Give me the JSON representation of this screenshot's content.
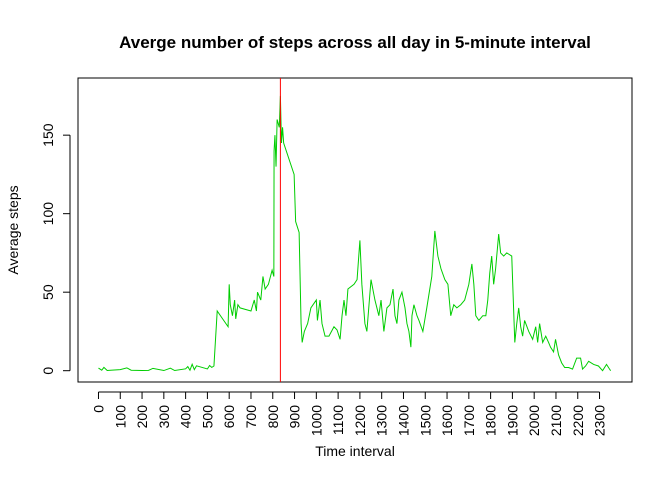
{
  "chart_data": {
    "type": "line",
    "title": "Averge number of steps across all day in 5-minute interval",
    "xlabel": "Time interval",
    "ylabel": "Average steps",
    "x": [
      0,
      15,
      25,
      40,
      55,
      100,
      130,
      150,
      200,
      230,
      250,
      300,
      330,
      350,
      400,
      410,
      420,
      430,
      440,
      450,
      500,
      505,
      510,
      520,
      530,
      545,
      560,
      595,
      600,
      605,
      615,
      625,
      630,
      640,
      650,
      700,
      715,
      725,
      730,
      745,
      755,
      765,
      780,
      797,
      805,
      806,
      810,
      815,
      820,
      830,
      835,
      840,
      845,
      850,
      898,
      905,
      921,
      930,
      935,
      945,
      960,
      975,
      1000,
      1005,
      1017,
      1026,
      1040,
      1058,
      1081,
      1095,
      1109,
      1118,
      1127,
      1136,
      1145,
      1173,
      1187,
      1200,
      1209,
      1223,
      1232,
      1251,
      1269,
      1287,
      1297,
      1310,
      1324,
      1338,
      1352,
      1361,
      1370,
      1379,
      1393,
      1407,
      1416,
      1425,
      1434,
      1439,
      1448,
      1462,
      1471,
      1489,
      1507,
      1530,
      1544,
      1558,
      1572,
      1590,
      1604,
      1617,
      1631,
      1645,
      1663,
      1681,
      1700,
      1714,
      1723,
      1732,
      1746,
      1764,
      1778,
      1787,
      1796,
      1805,
      1814,
      1823,
      1837,
      1846,
      1860,
      1874,
      1897,
      1911,
      1920,
      1929,
      1938,
      1947,
      1956,
      1975,
      1993,
      2007,
      2016,
      2025,
      2039,
      2053,
      2066,
      2075,
      2089,
      2098,
      2112,
      2126,
      2140,
      2158,
      2176,
      2195,
      2213,
      2222,
      2236,
      2250,
      2273,
      2295,
      2314,
      2332,
      2346,
      2351
    ],
    "values": [
      1.7,
      0.3,
      2.1,
      0.1,
      0.3,
      0.7,
      1.8,
      0.3,
      0.1,
      0.2,
      1.5,
      0.1,
      1.6,
      0.1,
      1.2,
      2.6,
      0.3,
      4.1,
      0.7,
      3.1,
      1.1,
      2.2,
      3.3,
      2.1,
      3.0,
      38,
      35,
      28,
      55,
      42,
      35,
      45,
      33,
      42,
      40,
      38,
      45,
      38,
      50,
      45,
      60,
      52,
      55,
      64,
      60,
      140,
      150,
      130,
      160,
      155,
      175,
      145,
      155,
      145,
      125,
      95,
      88,
      30,
      18,
      25,
      30,
      40,
      45,
      32,
      45,
      30,
      22,
      22,
      28,
      26,
      20,
      35,
      45,
      35,
      52,
      55,
      58,
      83,
      55,
      30,
      25,
      58,
      45,
      35,
      45,
      25,
      40,
      42,
      52,
      35,
      30,
      45,
      50,
      40,
      30,
      25,
      15,
      35,
      42,
      35,
      32,
      25,
      40,
      60,
      89,
      73,
      65,
      58,
      55,
      35,
      42,
      40,
      42,
      45,
      55,
      68,
      55,
      35,
      32,
      35,
      35,
      45,
      62,
      73,
      55,
      65,
      87,
      75,
      73,
      75,
      73,
      18,
      30,
      40,
      28,
      22,
      32,
      25,
      20,
      28,
      18,
      30,
      18,
      22,
      18,
      15,
      12,
      20,
      10,
      5,
      2,
      2,
      1,
      8,
      8,
      1,
      3,
      6,
      4,
      3,
      0,
      4,
      1,
      0
    ],
    "color": "#00cd00",
    "vline": {
      "x": 835,
      "color": "#ff0000"
    },
    "xlim": [
      -94,
      2449
    ],
    "ylim": [
      -7.2,
      186.4
    ],
    "xticks": [
      0,
      100,
      200,
      300,
      400,
      500,
      600,
      700,
      800,
      900,
      1000,
      1100,
      1200,
      1300,
      1400,
      1500,
      1600,
      1700,
      1800,
      1900,
      2000,
      2100,
      2200,
      2300
    ],
    "yticks": [
      0,
      50,
      100,
      150
    ]
  }
}
